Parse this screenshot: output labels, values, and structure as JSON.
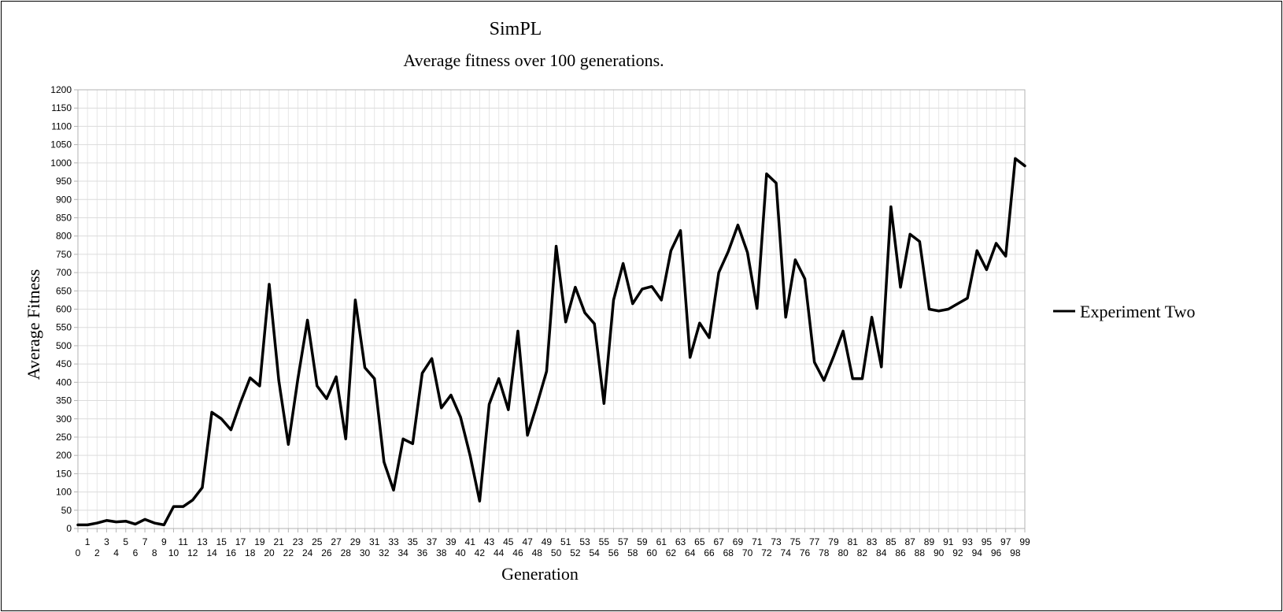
{
  "chart_data": {
    "type": "line",
    "title": "SimPL",
    "subtitle": "Average fitness over 100 generations.",
    "xlabel": "Generation",
    "ylabel": "Average Fitness",
    "ylim": [
      0,
      1200
    ],
    "ytick_step": 50,
    "grid": true,
    "legend_position": "right",
    "x": [
      0,
      1,
      2,
      3,
      4,
      5,
      6,
      7,
      8,
      9,
      10,
      11,
      12,
      13,
      14,
      15,
      16,
      17,
      18,
      19,
      20,
      21,
      22,
      23,
      24,
      25,
      26,
      27,
      28,
      29,
      30,
      31,
      32,
      33,
      34,
      35,
      36,
      37,
      38,
      39,
      40,
      41,
      42,
      43,
      44,
      45,
      46,
      47,
      48,
      49,
      50,
      51,
      52,
      53,
      54,
      55,
      56,
      57,
      58,
      59,
      60,
      61,
      62,
      63,
      64,
      65,
      66,
      67,
      68,
      69,
      70,
      71,
      72,
      73,
      74,
      75,
      76,
      77,
      78,
      79,
      80,
      81,
      82,
      83,
      84,
      85,
      86,
      87,
      88,
      89,
      90,
      91,
      92,
      93,
      94,
      95,
      96,
      97,
      98,
      99
    ],
    "series": [
      {
        "name": "Experiment Two",
        "color": "#000000",
        "values": [
          10,
          10,
          15,
          22,
          18,
          20,
          12,
          25,
          15,
          10,
          60,
          60,
          78,
          112,
          318,
          300,
          270,
          345,
          412,
          390,
          668,
          405,
          230,
          410,
          570,
          390,
          355,
          415,
          245,
          625,
          440,
          410,
          182,
          105,
          245,
          232,
          425,
          465,
          330,
          365,
          305,
          200,
          75,
          340,
          410,
          325,
          540,
          255,
          340,
          430,
          772,
          565,
          660,
          590,
          560,
          342,
          625,
          725,
          615,
          655,
          662,
          625,
          760,
          815,
          468,
          562,
          522,
          700,
          758,
          830,
          755,
          602,
          970,
          945,
          578,
          735,
          683,
          455,
          405,
          470,
          540,
          410,
          410,
          578,
          442,
          880,
          660,
          805,
          785,
          600,
          595,
          600,
          615,
          630,
          760,
          708,
          780,
          745,
          1012,
          992
        ]
      }
    ]
  }
}
